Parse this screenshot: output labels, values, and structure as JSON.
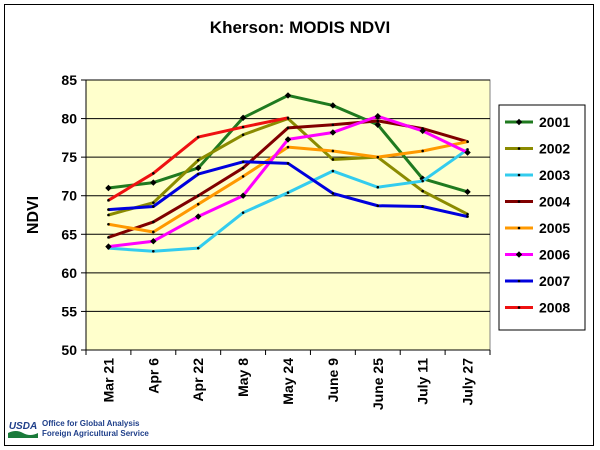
{
  "footer": {
    "logo_text": "USDA",
    "line1": "Office for Global Analysis",
    "line2": "Foreign Agricultural Service"
  },
  "chart_data": {
    "type": "line",
    "title": "Kherson:  MODIS NDVI",
    "xlabel": "",
    "ylabel": "NDVI",
    "categories": [
      "Mar 21",
      "Apr 6",
      "Apr 22",
      "May 8",
      "May 24",
      "June 9",
      "June 25",
      "July 11",
      "July 27"
    ],
    "ylim": [
      50,
      85
    ],
    "yticks": [
      50,
      55,
      60,
      65,
      70,
      75,
      80,
      85
    ],
    "grid": "horizontal",
    "legend_position": "right",
    "plot_background": "#ffffcc",
    "series": [
      {
        "name": "2001",
        "color": "#1f7a1f",
        "marker": "diamond",
        "values": [
          71.0,
          71.7,
          73.6,
          80.1,
          83.0,
          81.7,
          79.2,
          72.2,
          70.5
        ]
      },
      {
        "name": "2002",
        "color": "#8b8b00",
        "marker": "dot",
        "values": [
          67.5,
          69.1,
          74.6,
          77.9,
          80.0,
          74.7,
          75.0,
          70.6,
          67.6
        ]
      },
      {
        "name": "2003",
        "color": "#33ccee",
        "marker": "dot",
        "values": [
          63.2,
          62.8,
          63.2,
          67.8,
          70.4,
          73.2,
          71.1,
          71.9,
          76.0
        ]
      },
      {
        "name": "2004",
        "color": "#800000",
        "marker": "dot",
        "values": [
          64.6,
          66.6,
          70.0,
          73.6,
          78.8,
          79.2,
          79.7,
          78.7,
          77.0
        ]
      },
      {
        "name": "2005",
        "color": "#ff9900",
        "marker": "dot",
        "values": [
          66.3,
          65.3,
          68.9,
          72.5,
          76.3,
          75.8,
          75.0,
          75.8,
          77.0
        ]
      },
      {
        "name": "2006",
        "color": "#ff00ff",
        "marker": "diamond",
        "values": [
          63.4,
          64.1,
          67.3,
          70.0,
          77.3,
          78.2,
          80.3,
          78.4,
          75.6
        ]
      },
      {
        "name": "2007",
        "color": "#0000dd",
        "marker": "dot",
        "values": [
          68.2,
          68.6,
          72.8,
          74.4,
          74.2,
          70.3,
          68.7,
          68.6,
          67.3
        ]
      },
      {
        "name": "2008",
        "color": "#ee1111",
        "marker": "dot",
        "values": [
          69.4,
          72.9,
          77.6,
          78.9,
          80.1,
          null,
          null,
          null,
          null
        ]
      }
    ]
  }
}
